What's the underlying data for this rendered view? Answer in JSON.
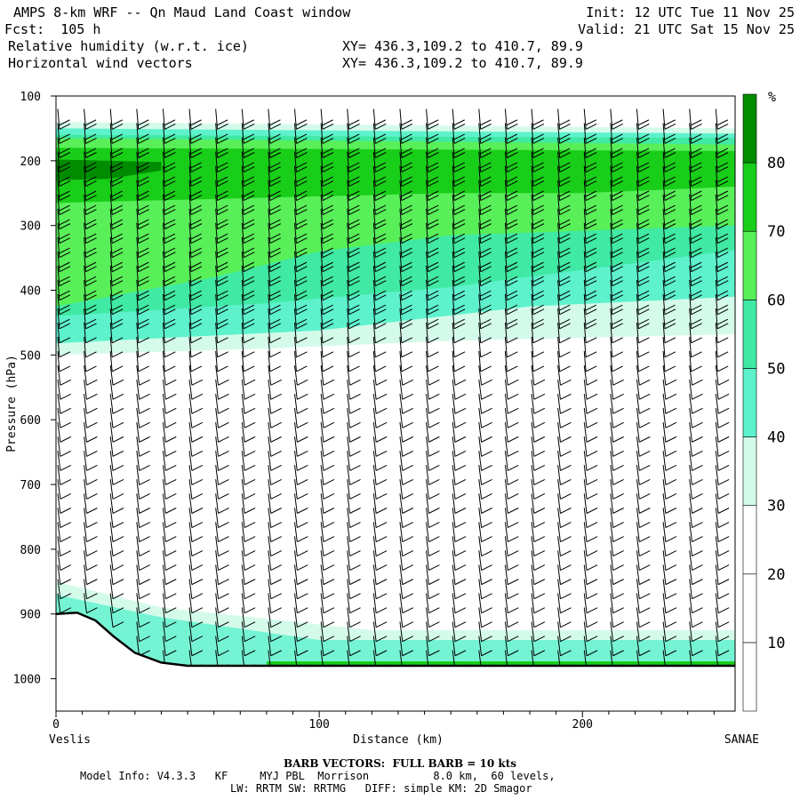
{
  "header": {
    "title": "AMPS 8-km WRF -- Qn Maud Land Coast window",
    "fcst": "Fcst:  105 h",
    "field1": "Relative humidity (w.r.t. ice)",
    "field2": "Horizontal wind vectors",
    "xy1": "XY= 436.3,109.2 to 410.7, 89.9",
    "xy2": "XY= 436.3,109.2 to 410.7, 89.9",
    "init": "Init: 12 UTC Tue 11 Nov 25",
    "valid": "Valid: 21 UTC Sat 15 Nov 25"
  },
  "footer": {
    "barb": "BARB VECTORS:  FULL BARB = 10 kts",
    "model1": "Model Info: V4.3.3   KF     MYJ PBL  Morrison          8.0 km,  60 levels,",
    "model2": "LW: RRTM SW: RRTMG   DIFF: simple KM: 2D Smagor"
  },
  "colors": {
    "bands": [
      "#ffffff",
      "#ffffff",
      "#ffffff",
      "#d4fbea",
      "#5df2cc",
      "#40e9a4",
      "#59ef59",
      "#19ce19",
      "#008c00"
    ],
    "terrain": "#000000"
  },
  "chart_data": {
    "type": "heatmap",
    "title": "Relative humidity (w.r.t. ice) cross-section with wind barbs",
    "xlabel": "Distance (km)",
    "ylabel": "Pressure (hPa)",
    "xlim": [
      0,
      258
    ],
    "ylim": [
      1050,
      100
    ],
    "x_ticks": [
      0,
      100,
      200
    ],
    "y_ticks": [
      100,
      200,
      300,
      400,
      500,
      600,
      700,
      800,
      900,
      1000
    ],
    "left_endpoint": "Veslis",
    "right_endpoint": "SANAE",
    "colorbar": {
      "unit": "%",
      "levels": [
        10,
        20,
        30,
        40,
        50,
        60,
        70,
        80
      ],
      "ticks": [
        "10",
        "20",
        "30",
        "40",
        "50",
        "60",
        "70",
        "80"
      ]
    },
    "rh_bands": [
      {
        "range": "30-40",
        "top": [
          [
            0,
            140
          ],
          [
            258,
            150
          ]
        ],
        "bottom": [
          [
            0,
            500
          ],
          [
            80,
            490
          ],
          [
            150,
            478
          ],
          [
            258,
            468
          ]
        ]
      },
      {
        "range": "40-50",
        "top": [
          [
            0,
            150
          ],
          [
            258,
            158
          ]
        ],
        "bottom": [
          [
            0,
            482
          ],
          [
            100,
            462
          ],
          [
            180,
            425
          ],
          [
            258,
            410
          ]
        ]
      },
      {
        "range": "50-60",
        "top": [
          [
            0,
            160
          ],
          [
            258,
            165
          ]
        ],
        "bottom": [
          [
            0,
            440
          ],
          [
            80,
            420
          ],
          [
            150,
            395
          ],
          [
            258,
            338
          ]
        ]
      },
      {
        "range": "60-70",
        "top": [
          [
            0,
            165
          ],
          [
            258,
            175
          ]
        ],
        "bottom": [
          [
            0,
            425
          ],
          [
            60,
            380
          ],
          [
            100,
            340
          ],
          [
            150,
            315
          ],
          [
            258,
            300
          ]
        ]
      },
      {
        "range": "70-80",
        "top": [
          [
            0,
            180
          ],
          [
            258,
            185
          ]
        ],
        "bottom": [
          [
            0,
            265
          ],
          [
            100,
            255
          ],
          [
            150,
            250
          ],
          [
            200,
            250
          ],
          [
            258,
            240
          ]
        ]
      },
      {
        "range": "80-90",
        "top": [
          [
            0,
            198
          ],
          [
            40,
            202
          ]
        ],
        "bottom": [
          [
            0,
            230
          ],
          [
            20,
            228
          ],
          [
            40,
            215
          ]
        ]
      }
    ],
    "low_level_moist_layer": {
      "range": "30-50",
      "top_hPa": 940,
      "x_range": [
        0,
        258
      ]
    },
    "terrain_surface": [
      [
        0,
        900
      ],
      [
        8,
        898
      ],
      [
        15,
        910
      ],
      [
        22,
        935
      ],
      [
        30,
        960
      ],
      [
        40,
        975
      ],
      [
        50,
        980
      ],
      [
        100,
        980
      ],
      [
        258,
        980
      ]
    ],
    "wind_barb_columns_km": [
      0,
      10,
      20,
      30,
      40,
      50,
      60,
      70,
      80,
      90,
      100,
      110,
      120,
      130,
      140,
      150,
      160,
      170,
      180,
      190,
      200,
      210,
      220,
      230,
      240,
      250
    ],
    "barb_unit": "kts"
  }
}
